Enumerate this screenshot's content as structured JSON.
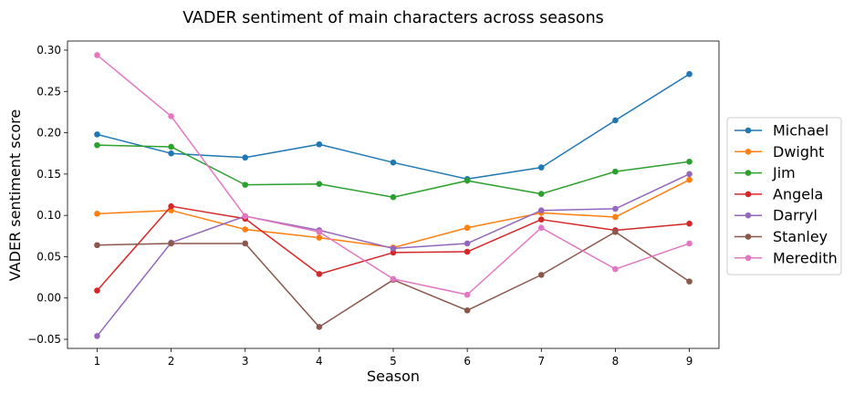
{
  "chart_data": {
    "type": "line",
    "title": "VADER sentiment of main characters across seasons",
    "xlabel": "Season",
    "ylabel": "VADER sentiment score",
    "x": [
      1,
      2,
      3,
      4,
      5,
      6,
      7,
      8,
      9
    ],
    "x_ticks": [
      "1",
      "2",
      "3",
      "4",
      "5",
      "6",
      "7",
      "8",
      "9"
    ],
    "y_ticks": [
      "−0.05",
      "0.00",
      "0.05",
      "0.10",
      "0.15",
      "0.20",
      "0.25",
      "0.30"
    ],
    "y_tick_values": [
      -0.05,
      0.0,
      0.05,
      0.1,
      0.15,
      0.2,
      0.25,
      0.3
    ],
    "xlim": [
      0.6,
      9.4
    ],
    "ylim": [
      -0.061,
      0.311
    ],
    "grid": false,
    "legend_position": "right",
    "series": [
      {
        "name": "Michael",
        "color": "#1f77b4",
        "values": [
          0.198,
          0.175,
          0.17,
          0.186,
          0.164,
          0.144,
          0.158,
          0.215,
          0.271
        ]
      },
      {
        "name": "Dwight",
        "color": "#ff7f0e",
        "values": [
          0.102,
          0.106,
          0.083,
          0.073,
          0.061,
          0.085,
          0.103,
          0.098,
          0.143
        ]
      },
      {
        "name": "Jim",
        "color": "#2ca02c",
        "values": [
          0.185,
          0.183,
          0.137,
          0.138,
          0.122,
          0.142,
          0.126,
          0.153,
          0.165
        ]
      },
      {
        "name": "Angela",
        "color": "#d62728",
        "values": [
          0.009,
          0.111,
          0.096,
          0.029,
          0.055,
          0.056,
          0.095,
          0.082,
          0.09
        ]
      },
      {
        "name": "Darryl",
        "color": "#9467bd",
        "values": [
          -0.046,
          0.067,
          0.099,
          0.082,
          0.06,
          0.066,
          0.106,
          0.108,
          0.15
        ]
      },
      {
        "name": "Stanley",
        "color": "#8c564b",
        "values": [
          0.064,
          0.066,
          0.066,
          -0.035,
          0.022,
          -0.015,
          0.028,
          0.08,
          0.02
        ]
      },
      {
        "name": "Meredith",
        "color": "#e377c2",
        "values": [
          0.294,
          0.22,
          0.099,
          0.08,
          0.023,
          0.004,
          0.085,
          0.035,
          0.066
        ]
      }
    ]
  }
}
